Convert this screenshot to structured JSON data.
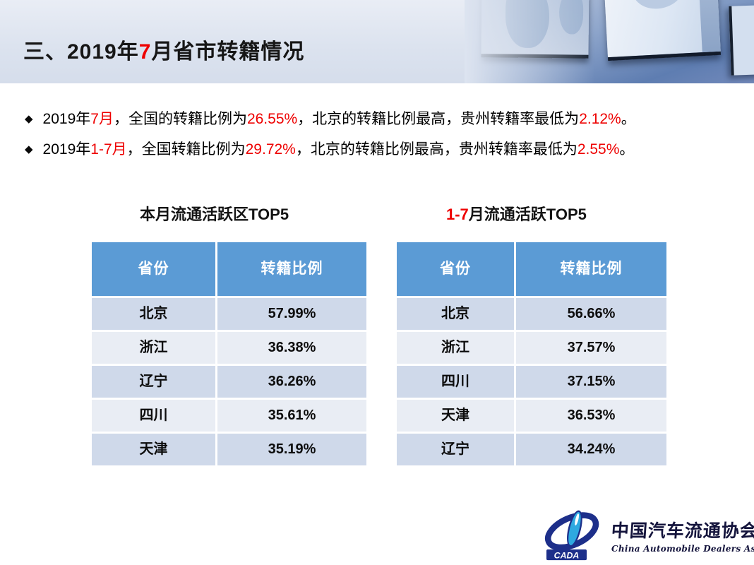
{
  "title": {
    "segments": [
      {
        "text": "三、2019年"
      },
      {
        "text": "7",
        "red": true
      },
      {
        "text": "月省市转籍情况"
      }
    ]
  },
  "bullets": [
    {
      "segments": [
        {
          "text": "2019年"
        },
        {
          "text": "7月",
          "red": true
        },
        {
          "text": "，全国的转籍比例为"
        },
        {
          "text": "26.55%",
          "red": true
        },
        {
          "text": "，北京的转籍比例最高，贵州转籍率最低为"
        },
        {
          "text": "2.12%",
          "red": true
        },
        {
          "text": "。"
        }
      ]
    },
    {
      "segments": [
        {
          "text": "2019年"
        },
        {
          "text": "1-7月",
          "red": true
        },
        {
          "text": "，全国转籍比例为"
        },
        {
          "text": "29.72%",
          "red": true
        },
        {
          "text": "，北京的转籍比例最高，贵州转籍率最低为"
        },
        {
          "text": "2.55%",
          "red": true
        },
        {
          "text": "。"
        }
      ]
    }
  ],
  "tables": [
    {
      "title_segments": [
        {
          "text": "本月流通活跃区TOP5"
        }
      ],
      "headers": [
        "省份",
        "转籍比例"
      ],
      "rows": [
        [
          "北京",
          "57.99%"
        ],
        [
          "浙江",
          "36.38%"
        ],
        [
          "辽宁",
          "36.26%"
        ],
        [
          "四川",
          "35.61%"
        ],
        [
          "天津",
          "35.19%"
        ]
      ]
    },
    {
      "title_segments": [
        {
          "text": "1-7",
          "red": true
        },
        {
          "text": "月流通活跃TOP5"
        }
      ],
      "headers": [
        "省份",
        "转籍比例"
      ],
      "rows": [
        [
          "北京",
          "56.66%"
        ],
        [
          "浙江",
          "37.57%"
        ],
        [
          "四川",
          "37.15%"
        ],
        [
          "天津",
          "36.53%"
        ],
        [
          "辽宁",
          "34.24%"
        ]
      ]
    }
  ],
  "logo": {
    "cada": "CADA",
    "name_cn": "中国汽车流通协会",
    "name_en": "China Automobile Dealers Association"
  },
  "colors": {
    "accent_red": "#ee0000",
    "table_header_blue": "#5b9bd5",
    "row_dark": "#cfd9ea",
    "row_light": "#e9edf4",
    "logo_navy": "#1d2f8a",
    "logo_cyan": "#2ea9e0"
  }
}
